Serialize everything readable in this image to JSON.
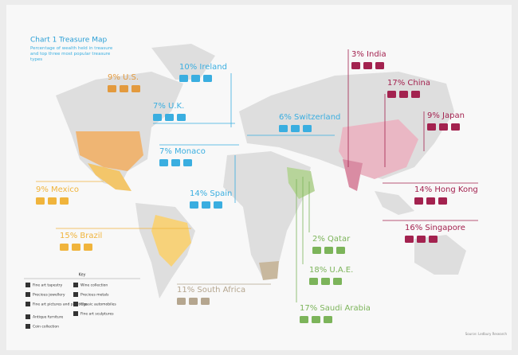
{
  "header": {
    "title": "Chart 1 Treasure Map",
    "subtitle": "Percentage of wealth held in treasure and top three most popular treasure types"
  },
  "countries": [
    {
      "label": "9% U.S."
    },
    {
      "label": "10% Ireland"
    },
    {
      "label": "7% U.K."
    },
    {
      "label": "6% Switzerland"
    },
    {
      "label": "7% Monaco"
    },
    {
      "label": "14% Spain"
    },
    {
      "label": "9% Mexico"
    },
    {
      "label": "15% Brazil"
    },
    {
      "label": "11% South Africa"
    },
    {
      "label": "2% Qatar"
    },
    {
      "label": "18% U.A.E."
    },
    {
      "label": "17% Saudi Arabia"
    },
    {
      "label": "3% India"
    },
    {
      "label": "17% China"
    },
    {
      "label": "9% Japan"
    },
    {
      "label": "14% Hong Kong"
    },
    {
      "label": "16% Singapore"
    }
  ],
  "key": {
    "title": "Key",
    "items": [
      "Fine art tapestry",
      "Precious jewellery",
      "Fine art pictures and paintings",
      "Antique furniture",
      "Coin collection",
      "Wine collection",
      "Precious metals",
      "Classic automobiles",
      "Fine art sculptures"
    ]
  },
  "source": "Source: Ledbury Research"
}
